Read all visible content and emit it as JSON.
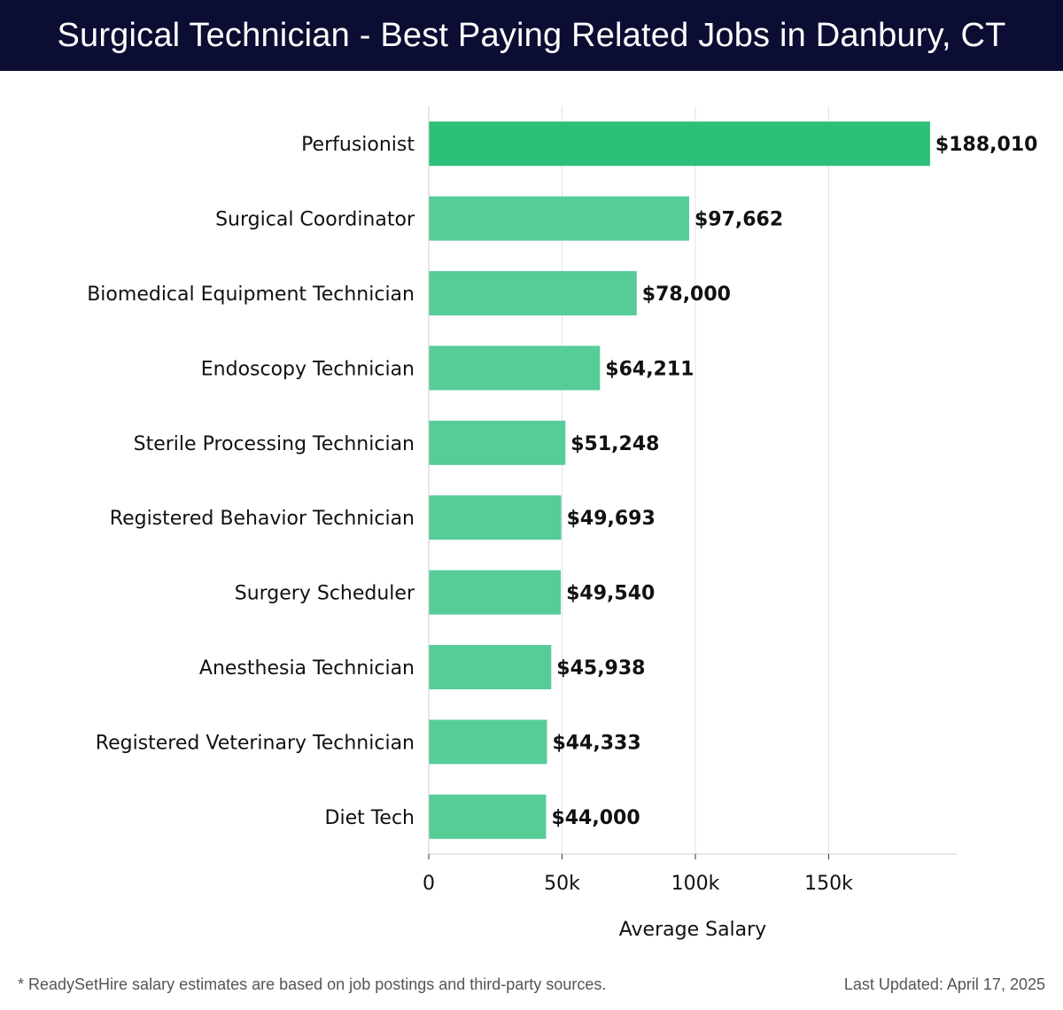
{
  "header": {
    "title": "Surgical Technician - Best Paying Related Jobs in Danbury, CT"
  },
  "chart_data": {
    "type": "bar",
    "orientation": "horizontal",
    "categories": [
      "Perfusionist",
      "Surgical Coordinator",
      "Biomedical Equipment Technician",
      "Endoscopy Technician",
      "Sterile Processing Technician",
      "Registered Behavior Technician",
      "Surgery Scheduler",
      "Anesthesia Technician",
      "Registered Veterinary Technician",
      "Diet Tech"
    ],
    "values": [
      188010,
      97662,
      78000,
      64211,
      51248,
      49693,
      49540,
      45938,
      44333,
      44000
    ],
    "data_labels": [
      "$188,010",
      "$97,662",
      "$78,000",
      "$64,211",
      "$51,248",
      "$49,693",
      "$49,540",
      "$45,938",
      "$44,333",
      "$44,000"
    ],
    "xlabel": "Average Salary",
    "xlim": [
      0,
      198000
    ],
    "xticks": [
      0,
      50000,
      100000,
      150000
    ],
    "xtick_labels": [
      "0",
      "50k",
      "100k",
      "150k"
    ],
    "grid": "vertical",
    "colors": {
      "top_bar": "#2bbf77",
      "bar": "#56cc96",
      "grid": "#e3e3e3",
      "axis": "#cccccc"
    }
  },
  "footer": {
    "note": "* ReadySetHire salary estimates are based on job postings and third-party sources.",
    "updated": "Last Updated: April 17, 2025"
  }
}
